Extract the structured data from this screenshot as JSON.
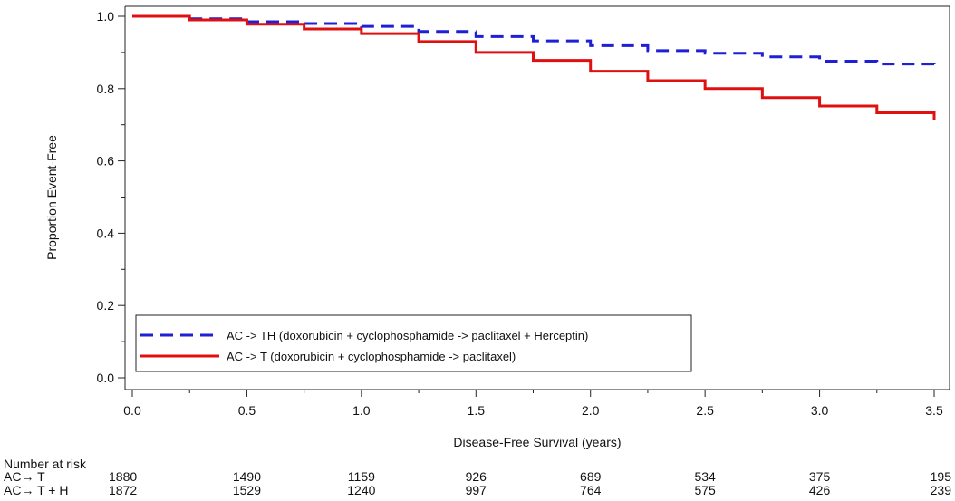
{
  "chart_data": {
    "type": "line",
    "xlabel": "Disease-Free Survival (years)",
    "ylabel": "Proportion Event-Free",
    "xlim": [
      0,
      3.5
    ],
    "ylim": [
      0,
      1.0
    ],
    "x_ticks": [
      "0.0",
      "0.5",
      "1.0",
      "1.5",
      "2.0",
      "2.5",
      "3.0",
      "3.5"
    ],
    "y_ticks": [
      "0.0",
      "0.2",
      "0.4",
      "0.6",
      "0.8",
      "1.0"
    ],
    "grid": false,
    "legend_position": "bottom-left",
    "series": [
      {
        "name": "AC -> TH (doxorubicin + cyclophosphamide -> paclitaxel + Herceptin)",
        "color": "#1f1fd6",
        "style": "dashed",
        "x": [
          0,
          0.25,
          0.5,
          0.75,
          1.0,
          1.25,
          1.5,
          1.75,
          2.0,
          2.25,
          2.5,
          2.75,
          3.0,
          3.25,
          3.5
        ],
        "y": [
          1.0,
          0.993,
          0.985,
          0.98,
          0.972,
          0.958,
          0.944,
          0.932,
          0.919,
          0.905,
          0.898,
          0.888,
          0.876,
          0.868,
          0.863
        ]
      },
      {
        "name": "AC -> T (doxorubicin + cyclophosphamide -> paclitaxel)",
        "color": "#e01010",
        "style": "solid",
        "x": [
          0,
          0.25,
          0.5,
          0.75,
          1.0,
          1.25,
          1.5,
          1.75,
          2.0,
          2.25,
          2.5,
          2.75,
          3.0,
          3.25,
          3.5
        ],
        "y": [
          1.0,
          0.99,
          0.978,
          0.965,
          0.952,
          0.93,
          0.9,
          0.878,
          0.848,
          0.822,
          0.8,
          0.775,
          0.752,
          0.733,
          0.712
        ]
      }
    ],
    "risk_table": {
      "title": "Number at risk",
      "rows": [
        {
          "label": "AC→ T",
          "values": [
            "1880",
            "1490",
            "1159",
            "926",
            "689",
            "534",
            "375",
            "195"
          ]
        },
        {
          "label": "AC→ T + H",
          "values": [
            "1872",
            "1529",
            "1240",
            "997",
            "764",
            "575",
            "426",
            "239"
          ]
        }
      ]
    }
  }
}
